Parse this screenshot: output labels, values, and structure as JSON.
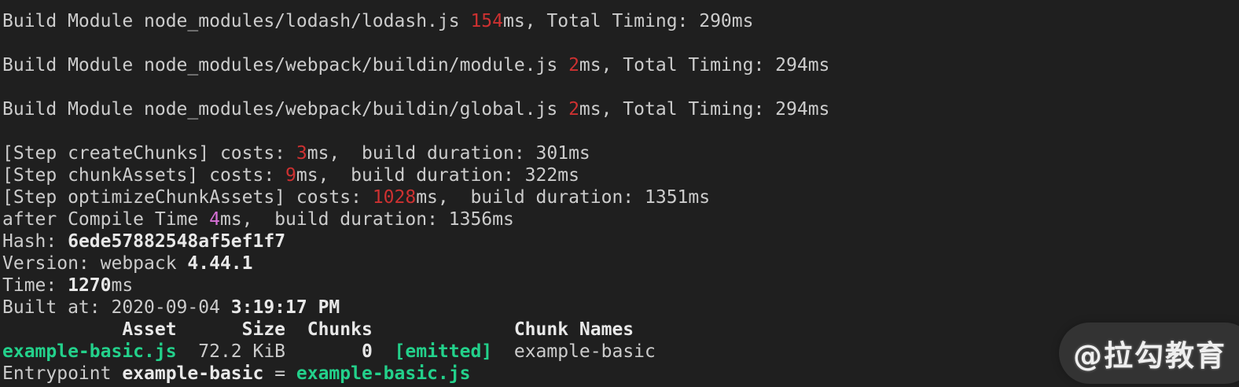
{
  "terminal": {
    "app": "webpack build console output",
    "colors": {
      "bg": "#1f1f1f",
      "fg": "#cccccc",
      "boldfg": "#e8e8e8",
      "red": "#cd3131",
      "magenta": "#d670d6",
      "green": "#23d18b"
    },
    "lines": [
      [
        {
          "t": "Build Module node_modules/lodash/lodash.js ",
          "c": "fg"
        },
        {
          "t": "154",
          "c": "red"
        },
        {
          "t": "ms, Total Timing: 290ms",
          "c": "fg"
        }
      ],
      [],
      [
        {
          "t": "Build Module node_modules/webpack/buildin/module.js ",
          "c": "fg"
        },
        {
          "t": "2",
          "c": "red"
        },
        {
          "t": "ms, Total Timing: 294ms",
          "c": "fg"
        }
      ],
      [],
      [
        {
          "t": "Build Module node_modules/webpack/buildin/global.js ",
          "c": "fg"
        },
        {
          "t": "2",
          "c": "red"
        },
        {
          "t": "ms, Total Timing: 294ms",
          "c": "fg"
        }
      ],
      [],
      [
        {
          "t": "[Step createChunks] costs: ",
          "c": "fg"
        },
        {
          "t": "3",
          "c": "red"
        },
        {
          "t": "ms,  build duration: 301ms",
          "c": "fg"
        }
      ],
      [
        {
          "t": "[Step chunkAssets] costs: ",
          "c": "fg"
        },
        {
          "t": "9",
          "c": "red"
        },
        {
          "t": "ms,  build duration: 322ms",
          "c": "fg"
        }
      ],
      [
        {
          "t": "[Step optimizeChunkAssets] costs: ",
          "c": "fg"
        },
        {
          "t": "1028",
          "c": "red"
        },
        {
          "t": "ms,  build duration: 1351ms",
          "c": "fg"
        }
      ],
      [
        {
          "t": "after Compile Time ",
          "c": "fg"
        },
        {
          "t": "4",
          "c": "magenta"
        },
        {
          "t": "ms,  build duration: 1356ms",
          "c": "fg"
        }
      ],
      [
        {
          "t": "Hash: ",
          "c": "fg"
        },
        {
          "t": "6ede57882548af5ef1f7",
          "c": "bold"
        }
      ],
      [
        {
          "t": "Version: webpack ",
          "c": "fg"
        },
        {
          "t": "4.44.1",
          "c": "bold"
        }
      ],
      [
        {
          "t": "Time: ",
          "c": "fg"
        },
        {
          "t": "1270",
          "c": "bold"
        },
        {
          "t": "ms",
          "c": "fg"
        }
      ],
      [
        {
          "t": "Built at: 2020-09-04 ",
          "c": "fg"
        },
        {
          "t": "3:19:17 PM",
          "c": "bold"
        }
      ],
      [
        {
          "t": "           Asset      Size  Chunks             Chunk Names",
          "c": "bold"
        }
      ],
      [
        {
          "t": "example-basic.js",
          "c": "green"
        },
        {
          "t": "  72.2 KiB  ",
          "c": "fg"
        },
        {
          "t": "     0",
          "c": "bold"
        },
        {
          "t": "  ",
          "c": "fg"
        },
        {
          "t": "[emitted]",
          "c": "green"
        },
        {
          "t": "  example-basic",
          "c": "fg"
        }
      ],
      [
        {
          "t": "Entrypoint ",
          "c": "fg"
        },
        {
          "t": "example-basic",
          "c": "bold"
        },
        {
          "t": " = ",
          "c": "fg"
        },
        {
          "t": "example-basic.js",
          "c": "green"
        }
      ]
    ],
    "asset_table": {
      "headers": [
        "Asset",
        "Size",
        "Chunks",
        "",
        "Chunk Names"
      ],
      "rows": [
        [
          "example-basic.js",
          "72.2 KiB",
          "0",
          "[emitted]",
          "example-basic"
        ]
      ]
    }
  },
  "watermark": {
    "label": "@拉勾教育"
  }
}
